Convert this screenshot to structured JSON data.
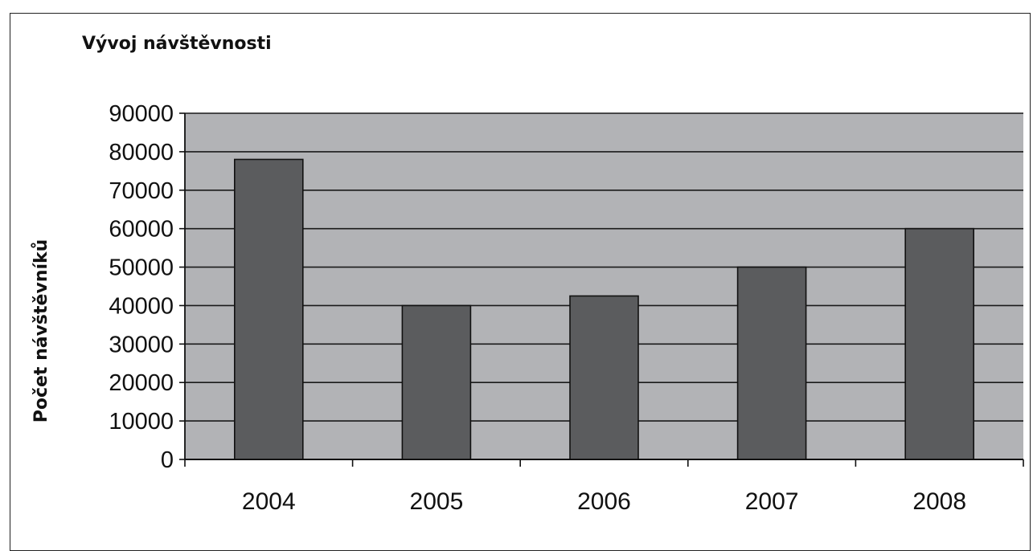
{
  "chart_data": {
    "type": "bar",
    "title": "Vývoj návštěvnosti",
    "xlabel": "",
    "ylabel": "Počet návštěvníků",
    "categories": [
      "2004",
      "2005",
      "2006",
      "2007",
      "2008"
    ],
    "values": [
      78000,
      40000,
      42500,
      50000,
      60000
    ],
    "ylim": [
      0,
      90000
    ],
    "yticks": [
      "0",
      "10000",
      "20000",
      "30000",
      "40000",
      "50000",
      "60000",
      "70000",
      "80000",
      "90000"
    ],
    "grid": true,
    "colors": {
      "plot_background": "#b2b3b6",
      "bar_fill": "#5b5c5e",
      "gridline": "#1a1a1a"
    }
  }
}
